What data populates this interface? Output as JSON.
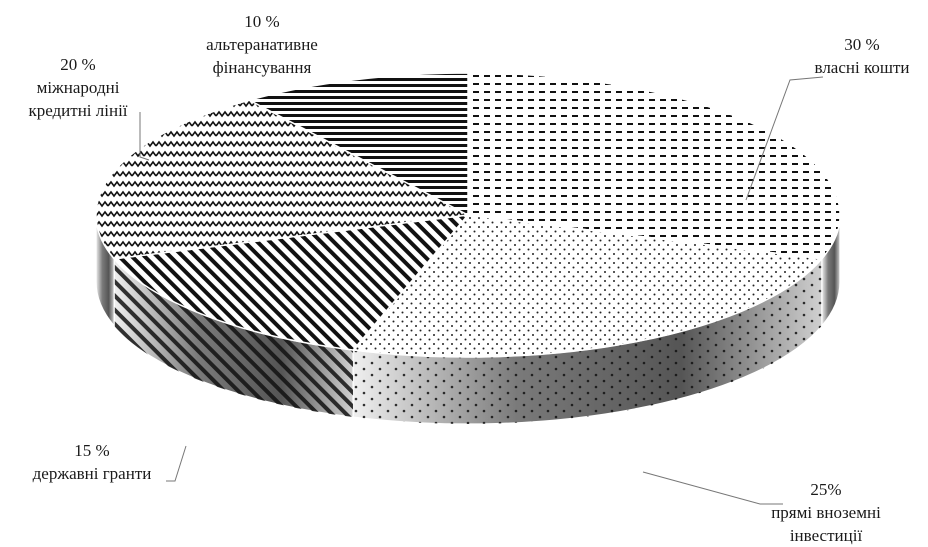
{
  "chart_data": {
    "type": "pie",
    "style": "3d",
    "title": "",
    "slices": [
      {
        "value": 30,
        "pct_label": "30 %",
        "name_lines": [
          "власні кошти"
        ],
        "pattern": "dashes"
      },
      {
        "value": 25,
        "pct_label": "25%",
        "name_lines": [
          "прямі вноземні",
          "інвестиції"
        ],
        "pattern": "dots"
      },
      {
        "value": 15,
        "pct_label": "15 %",
        "name_lines": [
          "державні гранти"
        ],
        "pattern": "diagonal-stripes"
      },
      {
        "value": 20,
        "pct_label": "20 %",
        "name_lines": [
          "міжнародні",
          "кредитні лінії"
        ],
        "pattern": "zigzag"
      },
      {
        "value": 10,
        "pct_label": "10 %",
        "name_lines": [
          "альтеранативне",
          "фінансування"
        ],
        "pattern": "horizontal-stripes"
      }
    ],
    "colors": {
      "ink": "#111111",
      "background": "#ffffff"
    }
  }
}
